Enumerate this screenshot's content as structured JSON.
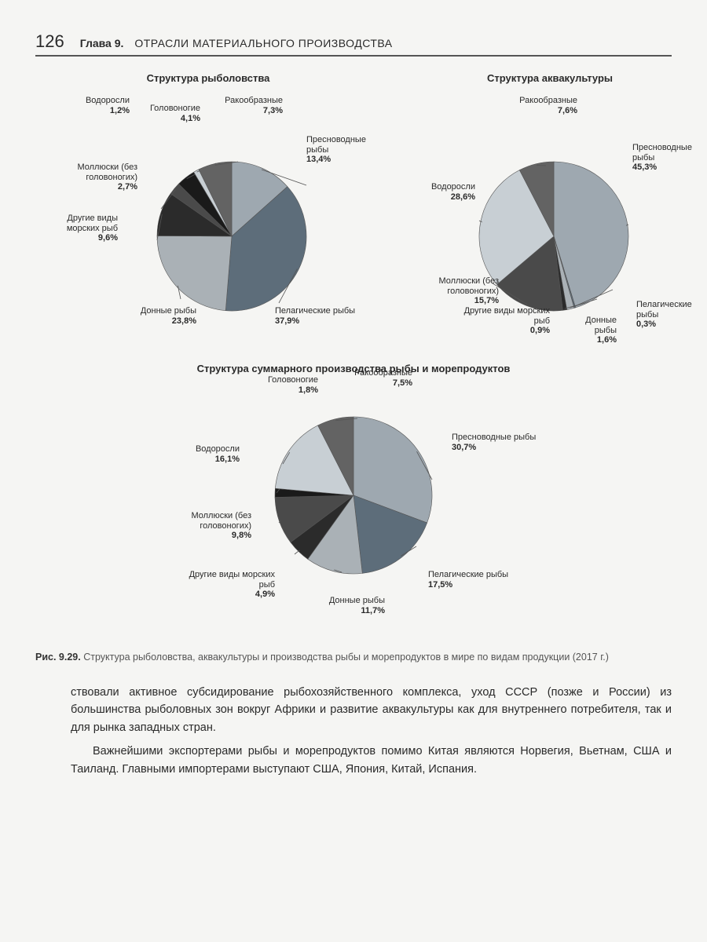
{
  "header": {
    "page_number": "126",
    "chapter_label": "Глава 9.",
    "chapter_title": "ОТРАСЛИ МАТЕРИАЛЬНОГО ПРОИЗВОДСТВА"
  },
  "chart_style": {
    "radius": 90,
    "stroke": "#555",
    "background": "#f5f5f3"
  },
  "colors": {
    "freshwater": "#9ea8b0",
    "pelagic": "#5d6d7a",
    "bottom": "#aab1b6",
    "other_marine": "#2b2b2b",
    "mollusks": "#4a4a4a",
    "cephalopods": "#1a1a1a",
    "algae": "#c8cfd4",
    "crustaceans": "#636363"
  },
  "charts": {
    "fishing": {
      "title": "Структура рыболовства",
      "slices": [
        {
          "key": "freshwater",
          "label": "Пресноводные рыбы",
          "value": 13.4,
          "disp": "13,4%"
        },
        {
          "key": "pelagic",
          "label": "Пелагические рыбы",
          "value": 37.9,
          "disp": "37,9%"
        },
        {
          "key": "bottom",
          "label": "Донные рыбы",
          "value": 23.8,
          "disp": "23,8%"
        },
        {
          "key": "other_marine",
          "label": "Другие виды морских рыб",
          "value": 9.6,
          "disp": "9,6%"
        },
        {
          "key": "mollusks",
          "label": "Моллюски (без головоногих)",
          "value": 2.7,
          "disp": "2,7%"
        },
        {
          "key": "cephalopods",
          "label": "Головоногие",
          "value": 4.1,
          "disp": "4,1%"
        },
        {
          "key": "algae",
          "label": "Водоросли",
          "value": 1.2,
          "disp": "1,2%"
        },
        {
          "key": "crustaceans",
          "label": "Ракообразные",
          "value": 7.3,
          "disp": "7,3%"
        }
      ]
    },
    "aquaculture": {
      "title": "Структура аквакультуры",
      "slices": [
        {
          "key": "freshwater",
          "label": "Пресноводные рыбы",
          "value": 45.3,
          "disp": "45,3%"
        },
        {
          "key": "pelagic",
          "label": "Пелагические рыбы",
          "value": 0.3,
          "disp": "0,3%"
        },
        {
          "key": "bottom",
          "label": "Донные рыбы",
          "value": 1.6,
          "disp": "1,6%"
        },
        {
          "key": "other_marine",
          "label": "Другие виды морских рыб",
          "value": 0.9,
          "disp": "0,9%"
        },
        {
          "key": "mollusks",
          "label": "Моллюски (без головоногих)",
          "value": 15.7,
          "disp": "15,7%"
        },
        {
          "key": "algae",
          "label": "Водоросли",
          "value": 28.6,
          "disp": "28,6%"
        },
        {
          "key": "crustaceans",
          "label": "Ракообразные",
          "value": 7.6,
          "disp": "7,6%"
        }
      ]
    },
    "total": {
      "title": "Структура суммарного производства рыбы и морепродуктов",
      "slices": [
        {
          "key": "freshwater",
          "label": "Пресноводные рыбы",
          "value": 30.7,
          "disp": "30,7%"
        },
        {
          "key": "pelagic",
          "label": "Пелагические рыбы",
          "value": 17.5,
          "disp": "17,5%"
        },
        {
          "key": "bottom",
          "label": "Донные рыбы",
          "value": 11.7,
          "disp": "11,7%"
        },
        {
          "key": "other_marine",
          "label": "Другие виды морских рыб",
          "value": 4.9,
          "disp": "4,9%"
        },
        {
          "key": "mollusks",
          "label": "Моллюски (без головоногих)",
          "value": 9.8,
          "disp": "9,8%"
        },
        {
          "key": "cephalopods",
          "label": "Головоногие",
          "value": 1.8,
          "disp": "1,8%"
        },
        {
          "key": "algae",
          "label": "Водоросли",
          "value": 16.1,
          "disp": "16,1%"
        },
        {
          "key": "crustaceans",
          "label": "Ракообразные",
          "value": 7.5,
          "disp": "7,5%"
        }
      ]
    }
  },
  "caption": {
    "fig": "Рис. 9.29.",
    "text": "Структура рыболовства, аквакультуры и производства рыбы и морепродуктов в мире по видам продукции (2017 г.)"
  },
  "body": {
    "p1": "ствовали активное субсидирование рыбохозяйственного комплекса, уход СССР (позже и России) из большинства рыболовных зон вокруг Африки и развитие аквакультуры как для внутреннего потребителя, так и для рынка западных стран.",
    "p2": "Важнейшими экспортерами рыбы и морепродуктов помимо Китая являются Норвегия, Вьетнам, США и Таиланд. Главными импортерами выступают США, Япония, Китай, Испания."
  }
}
